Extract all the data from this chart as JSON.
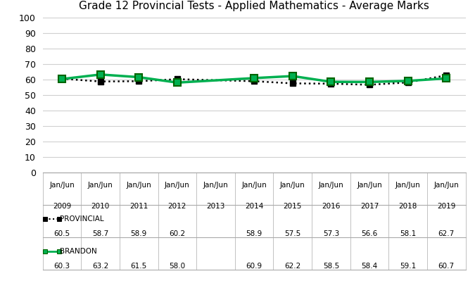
{
  "title": "Grade 12 Provincial Tests - Applied Mathematics - Average Marks",
  "x_labels": [
    "Jan/Jun\n2009",
    "Jan/Jun\n2010",
    "Jan/Jun\n2011",
    "Jan/Jun\n2012",
    "Jan/Jun\n2013",
    "Jan/Jun\n2014",
    "Jan/Jun\n2015",
    "Jan/Jun\n2016",
    "Jan/Jun\n2017",
    "Jan/Jun\n2018",
    "Jan/Jun\n2019"
  ],
  "x_indices": [
    0,
    1,
    2,
    3,
    4,
    5,
    6,
    7,
    8,
    9,
    10
  ],
  "provincial_x": [
    0,
    1,
    2,
    3,
    5,
    6,
    7,
    8,
    9,
    10
  ],
  "provincial_y": [
    60.5,
    58.7,
    58.9,
    60.2,
    58.9,
    57.5,
    57.3,
    56.6,
    58.1,
    62.7
  ],
  "brandon_x": [
    0,
    1,
    2,
    3,
    5,
    6,
    7,
    8,
    9,
    10
  ],
  "brandon_y": [
    60.3,
    63.2,
    61.5,
    58.0,
    60.9,
    62.2,
    58.5,
    58.4,
    59.1,
    60.7
  ],
  "provincial_label": "PROVINCIAL",
  "brandon_label": "BRANDON",
  "provincial_color": "#000000",
  "brandon_color": "#00b050",
  "brandon_edge_color": "#006400",
  "ylim": [
    0,
    100
  ],
  "yticks": [
    0,
    10,
    20,
    30,
    40,
    50,
    60,
    70,
    80,
    90,
    100
  ],
  "table_provincial": [
    "60.5",
    "58.7",
    "58.9",
    "60.2",
    "",
    "58.9",
    "57.5",
    "57.3",
    "56.6",
    "58.1",
    "62.7"
  ],
  "table_brandon": [
    "60.3",
    "63.2",
    "61.5",
    "58.0",
    "",
    "60.9",
    "62.2",
    "58.5",
    "58.4",
    "59.1",
    "60.7"
  ],
  "background_color": "#ffffff",
  "grid_color": "#d0d0d0",
  "line_color": "#aaaaaa",
  "title_fontsize": 11,
  "table_fontsize": 7.5
}
